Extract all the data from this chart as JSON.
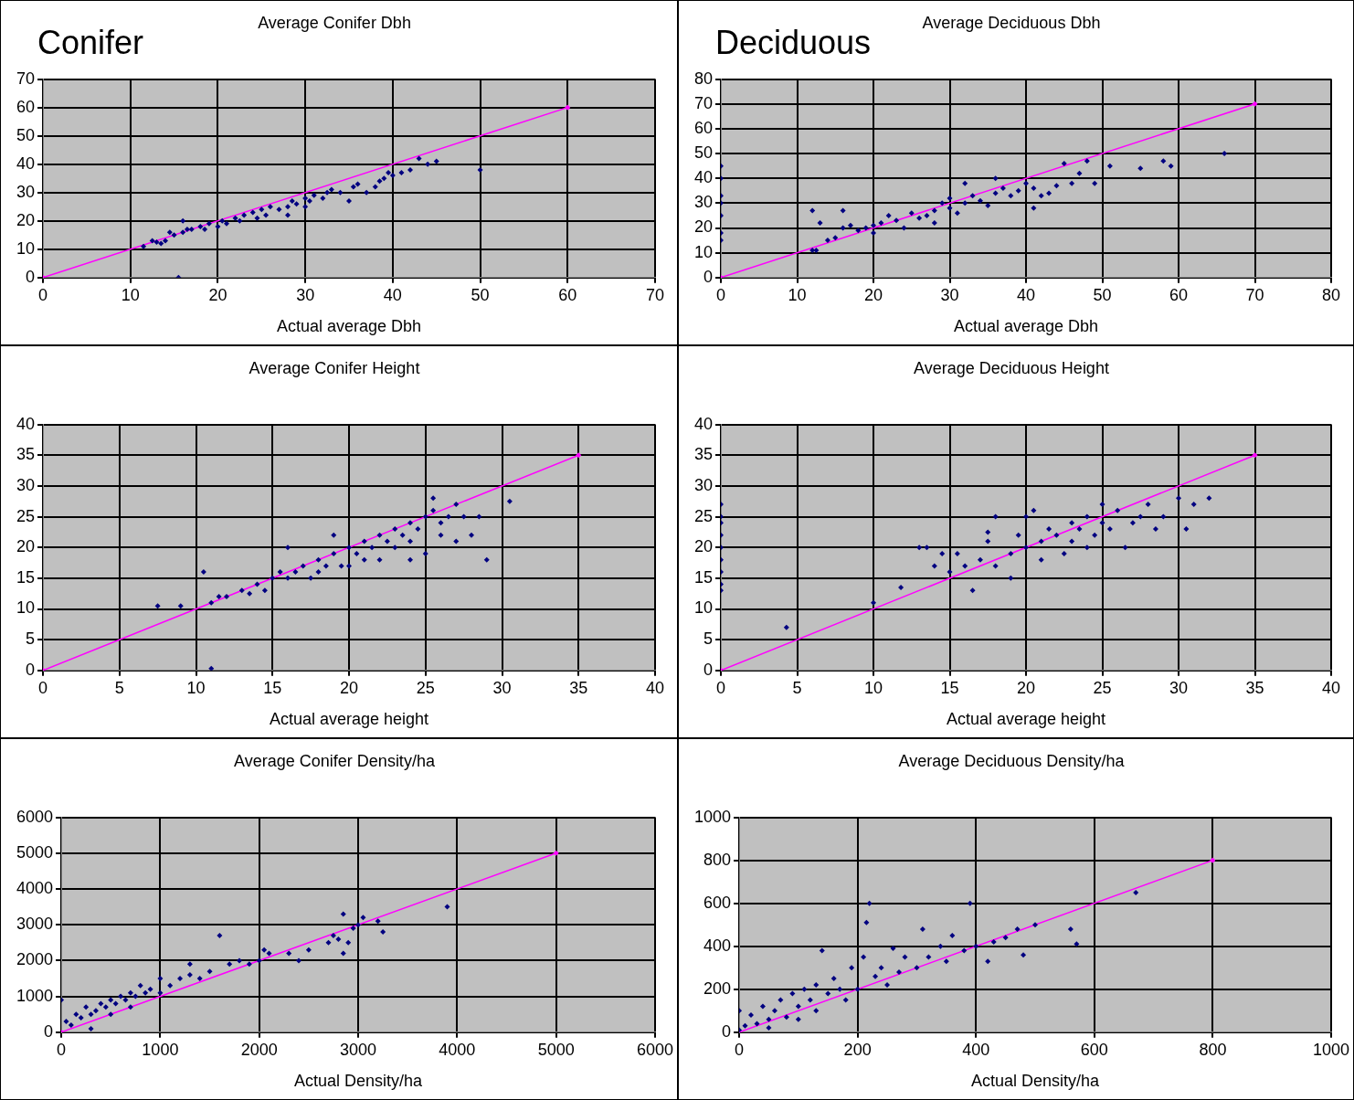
{
  "chart_data": [
    {
      "type": "scatter",
      "title": "Average Conifer Dbh",
      "xlabel": "Actual average Dbh",
      "annotations": [
        "Conifer"
      ],
      "xlim": [
        0,
        70
      ],
      "xticks": [
        0,
        10,
        20,
        30,
        40,
        50,
        60,
        70
      ],
      "ylim": [
        0,
        70
      ],
      "yticks": [
        0,
        10,
        20,
        30,
        40,
        50,
        60,
        70
      ],
      "grid": true,
      "marker": "diamond",
      "series": [
        {
          "color": "#000080",
          "x": [
            11.5,
            12.5,
            13,
            13.5,
            14,
            14.5,
            15,
            16,
            16.5,
            17,
            18,
            18.5,
            19,
            20,
            20.5,
            21,
            22,
            22.5,
            23,
            24,
            24.5,
            25,
            25.5,
            26,
            27,
            28,
            28.5,
            29,
            30,
            30.5,
            31,
            32,
            32.5,
            33,
            34,
            35,
            35.5,
            36,
            37,
            38,
            38.5,
            39,
            39.5,
            40,
            41,
            42,
            43,
            44,
            45,
            50,
            15.5,
            16,
            30,
            28
          ],
          "values": [
            11,
            13,
            12.5,
            12,
            13,
            16,
            15,
            16,
            17,
            17,
            18,
            17,
            19,
            18,
            20,
            19,
            21,
            20,
            22,
            23,
            21,
            24,
            22,
            25,
            24,
            25,
            27,
            26,
            28,
            27,
            29,
            28,
            30,
            31,
            30,
            27,
            32,
            33,
            30,
            32,
            34,
            35,
            37,
            36,
            37,
            38,
            42,
            40,
            41,
            38,
            0,
            20,
            25,
            22
          ]
        },
        {
          "type": "line",
          "color": "#ff00ff",
          "x": [
            0,
            60
          ],
          "values": [
            0,
            60
          ]
        }
      ]
    },
    {
      "type": "scatter",
      "title": "Average Deciduous Dbh",
      "xlabel": "Actual average Dbh",
      "annotations": [
        "Deciduous"
      ],
      "xlim": [
        0,
        80
      ],
      "xticks": [
        0,
        10,
        20,
        30,
        40,
        50,
        60,
        70,
        80
      ],
      "ylim": [
        0,
        80
      ],
      "yticks": [
        0,
        10,
        20,
        30,
        40,
        50,
        60,
        70,
        80
      ],
      "grid": true,
      "marker": "diamond",
      "series": [
        {
          "color": "#000080",
          "x": [
            0,
            0,
            0,
            0,
            0,
            0,
            0,
            12,
            12.5,
            12,
            13,
            14,
            15,
            16,
            16,
            17,
            18,
            19,
            20,
            20,
            21,
            22,
            23,
            24,
            25,
            26,
            27,
            28,
            28,
            29,
            30,
            30,
            31,
            32,
            33,
            34,
            35,
            36,
            37,
            38,
            39,
            40,
            41,
            42,
            43,
            44,
            45,
            46,
            47,
            48,
            49,
            51,
            55,
            58,
            59,
            66,
            32,
            36,
            41
          ],
          "values": [
            15,
            18,
            25,
            30,
            33,
            40,
            45,
            11,
            11,
            27,
            22,
            15,
            16,
            20,
            27,
            21,
            19,
            20,
            21,
            18,
            22,
            25,
            23,
            20,
            26,
            24,
            25,
            22,
            27,
            30,
            28,
            32,
            26,
            30,
            33,
            31,
            29,
            34,
            36,
            33,
            35,
            38,
            36,
            33,
            34,
            37,
            46,
            38,
            42,
            47,
            38,
            45,
            44,
            47,
            45,
            50,
            38,
            40,
            28
          ]
        },
        {
          "type": "line",
          "color": "#ff00ff",
          "x": [
            0,
            70
          ],
          "values": [
            0,
            70
          ]
        }
      ]
    },
    {
      "type": "scatter",
      "title": "Average Conifer Height",
      "xlabel": "Actual average height",
      "xlim": [
        0,
        40
      ],
      "xticks": [
        0,
        5,
        10,
        15,
        20,
        25,
        30,
        35,
        40
      ],
      "ylim": [
        0,
        40
      ],
      "yticks": [
        0,
        5,
        10,
        15,
        20,
        25,
        30,
        35,
        40
      ],
      "grid": true,
      "marker": "diamond",
      "series": [
        {
          "color": "#000080",
          "x": [
            7.5,
            9,
            10.5,
            11,
            11,
            11.5,
            12,
            13,
            13.5,
            14,
            14.5,
            15,
            15.5,
            16,
            16,
            16.5,
            17,
            17.5,
            18,
            18,
            18.5,
            19,
            19.5,
            20,
            20,
            20.5,
            21,
            21,
            21.5,
            22,
            22,
            22.5,
            23,
            23,
            23.5,
            24,
            24,
            24.5,
            25,
            25,
            25.5,
            26,
            26,
            26.5,
            27,
            27,
            27.5,
            28,
            28.5,
            29,
            30.5,
            25.5,
            24,
            19
          ],
          "values": [
            10.5,
            10.5,
            16,
            0.3,
            11,
            12,
            12,
            13,
            12.5,
            14,
            13,
            15,
            16,
            15,
            20,
            16,
            17,
            15,
            18,
            16,
            17,
            19,
            17,
            20,
            17,
            19,
            21,
            18,
            20,
            22,
            18,
            21,
            23,
            20,
            22,
            24,
            21,
            23,
            25,
            19,
            26,
            24,
            22,
            25,
            27,
            21,
            25,
            22,
            25,
            18,
            27.5,
            28,
            18,
            22
          ]
        },
        {
          "type": "line",
          "color": "#ff00ff",
          "x": [
            0,
            35
          ],
          "values": [
            0,
            35
          ]
        }
      ]
    },
    {
      "type": "scatter",
      "title": "Average Deciduous Height",
      "xlabel": "Actual average height",
      "xlim": [
        0,
        40
      ],
      "xticks": [
        0,
        5,
        10,
        15,
        20,
        25,
        30,
        35,
        40
      ],
      "ylim": [
        0,
        40
      ],
      "yticks": [
        0,
        5,
        10,
        15,
        20,
        25,
        30,
        35,
        40
      ],
      "grid": true,
      "marker": "diamond",
      "series": [
        {
          "color": "#000080",
          "x": [
            0,
            0,
            0,
            0,
            0,
            0,
            0,
            0,
            0,
            4.3,
            10,
            11.8,
            13,
            13.5,
            14,
            14.5,
            15,
            15.5,
            16,
            16.5,
            17,
            17.5,
            18,
            18,
            19,
            19,
            19.5,
            20,
            20.5,
            21,
            21,
            21.5,
            22,
            22.5,
            23,
            23,
            23.5,
            24,
            24,
            24.5,
            25,
            25,
            25.5,
            26,
            26.5,
            27,
            28,
            28.5,
            29,
            30,
            30.5,
            31,
            32,
            17.5,
            20,
            27.5
          ],
          "values": [
            13,
            14,
            16,
            18,
            20,
            22,
            24,
            25,
            27,
            7,
            11,
            13.5,
            20,
            20,
            17,
            19,
            16,
            19,
            17,
            13,
            18,
            21,
            17,
            25,
            19,
            15,
            22,
            20,
            26,
            21,
            18,
            23,
            22,
            19,
            24,
            21,
            23,
            25,
            20,
            22,
            24,
            27,
            23,
            26,
            20,
            24,
            27,
            23,
            25,
            28,
            23,
            27,
            28,
            22.5,
            25,
            25
          ]
        },
        {
          "type": "line",
          "color": "#ff00ff",
          "x": [
            0,
            35
          ],
          "values": [
            0,
            35
          ]
        }
      ]
    },
    {
      "type": "scatter",
      "title": "Average Conifer Density/ha",
      "xlabel": "Actual Density/ha",
      "xlim": [
        0,
        6000
      ],
      "xticks": [
        0,
        1000,
        2000,
        3000,
        4000,
        5000,
        6000
      ],
      "ylim": [
        0,
        6000
      ],
      "yticks": [
        0,
        1000,
        2000,
        3000,
        4000,
        5000,
        6000
      ],
      "grid": true,
      "marker": "diamond",
      "series": [
        {
          "color": "#000080",
          "x": [
            0,
            50,
            100,
            150,
            200,
            250,
            300,
            350,
            400,
            450,
            500,
            550,
            600,
            650,
            700,
            750,
            800,
            850,
            900,
            1000,
            1100,
            1200,
            1300,
            1400,
            1500,
            1600,
            1700,
            1800,
            1900,
            2000,
            2050,
            2100,
            2300,
            2400,
            2500,
            2700,
            2750,
            2800,
            2850,
            2900,
            2950,
            3000,
            3050,
            3200,
            3250,
            3900,
            300,
            500,
            700,
            1000,
            2850,
            1300
          ],
          "values": [
            900,
            300,
            200,
            500,
            400,
            700,
            500,
            600,
            800,
            700,
            900,
            800,
            1000,
            900,
            1100,
            1000,
            1300,
            1100,
            1200,
            1100,
            1300,
            1500,
            1600,
            1500,
            1700,
            2700,
            1900,
            2000,
            1900,
            2000,
            2300,
            2200,
            2200,
            2000,
            2300,
            2500,
            2700,
            2600,
            3300,
            2500,
            2900,
            3000,
            3200,
            3100,
            2800,
            3500,
            100,
            500,
            700,
            1500,
            2200,
            1900
          ]
        },
        {
          "type": "line",
          "color": "#ff00ff",
          "x": [
            0,
            5000
          ],
          "values": [
            0,
            5000
          ]
        }
      ]
    },
    {
      "type": "scatter",
      "title": "Average Deciduous Density/ha",
      "xlabel": "Actual Density/ha",
      "xlim": [
        0,
        1000
      ],
      "xticks": [
        0,
        200,
        400,
        600,
        800,
        1000
      ],
      "ylim": [
        0,
        1000
      ],
      "yticks": [
        0,
        200,
        400,
        600,
        800,
        1000
      ],
      "grid": true,
      "marker": "diamond",
      "series": [
        {
          "color": "#000080",
          "x": [
            0,
            0,
            10,
            20,
            30,
            40,
            50,
            60,
            70,
            80,
            90,
            100,
            110,
            120,
            130,
            140,
            150,
            160,
            170,
            180,
            190,
            200,
            210,
            215,
            220,
            230,
            240,
            250,
            260,
            270,
            280,
            300,
            310,
            320,
            340,
            350,
            360,
            380,
            390,
            400,
            420,
            430,
            450,
            470,
            480,
            500,
            560,
            570,
            670,
            50,
            100,
            130
          ],
          "values": [
            10,
            100,
            30,
            80,
            40,
            120,
            60,
            100,
            150,
            70,
            180,
            120,
            200,
            150,
            220,
            380,
            180,
            250,
            200,
            150,
            300,
            200,
            350,
            510,
            600,
            260,
            300,
            220,
            390,
            280,
            350,
            300,
            480,
            350,
            400,
            330,
            450,
            380,
            600,
            400,
            330,
            420,
            440,
            480,
            360,
            500,
            480,
            410,
            650,
            20,
            60,
            100
          ]
        },
        {
          "type": "line",
          "color": "#ff00ff",
          "x": [
            0,
            800
          ],
          "values": [
            0,
            800
          ]
        }
      ]
    }
  ]
}
